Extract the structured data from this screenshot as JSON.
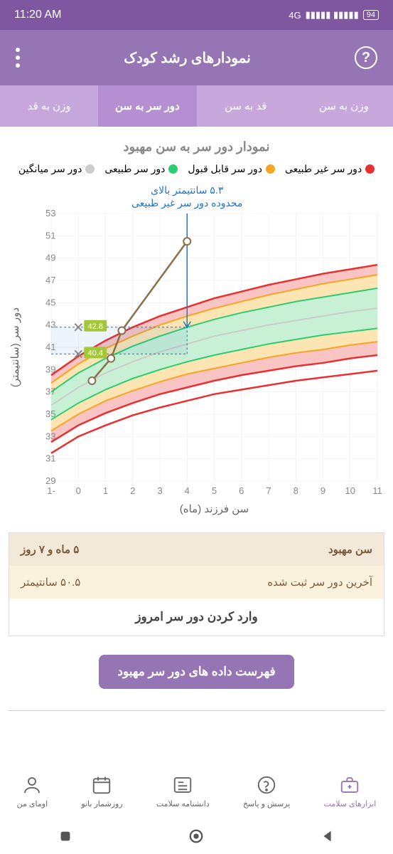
{
  "status": {
    "time": "11:20 AM",
    "network": "4G",
    "battery": "94"
  },
  "appbar": {
    "title": "نمودارهای رشد کودک"
  },
  "tabs": {
    "items": [
      {
        "label": "وزن به سن",
        "active": false
      },
      {
        "label": "قد به سن",
        "active": false
      },
      {
        "label": "دور سر به سن",
        "active": true
      },
      {
        "label": "وزن به قد",
        "active": false
      }
    ]
  },
  "chart": {
    "title": "نمودار دور سر به سن مهبود",
    "legend": [
      {
        "label": "دور سر غیر طبیعی",
        "color": "#e83030"
      },
      {
        "label": "دور سر قابل قبول",
        "color": "#f5a623"
      },
      {
        "label": "دور سر طبیعی",
        "color": "#2ecc71"
      },
      {
        "label": "دور سر میانگین",
        "color": "#cccccc"
      }
    ],
    "annotation": {
      "line1": "۵.۳ سانتیمتر بالای",
      "line2": "محدوده دور سر غیر طبیعی",
      "color": "#1976d2"
    },
    "x_label": "سن فرزند (ماه)",
    "y_label": "دور سر (سانتیمتر)",
    "x_ticks": [
      -1,
      0,
      1,
      2,
      3,
      4,
      5,
      6,
      7,
      8,
      9,
      10,
      11
    ],
    "y_ticks": [
      29,
      31,
      33,
      35,
      37,
      39,
      41,
      43,
      45,
      47,
      49,
      51,
      53
    ],
    "xlim": [
      -1,
      11
    ],
    "ylim": [
      29,
      53
    ],
    "markers": [
      {
        "label": "42.8",
        "value": 42.8,
        "x": 0,
        "color": "#a4c639"
      },
      {
        "label": "40.4",
        "value": 40.4,
        "x": 0,
        "color": "#a4c639"
      }
    ],
    "data_points": [
      {
        "x": 0.5,
        "y": 38.0
      },
      {
        "x": 1.2,
        "y": 40.0
      },
      {
        "x": 1.6,
        "y": 42.5
      },
      {
        "x": 4.0,
        "y": 50.5
      }
    ],
    "bands": {
      "red_upper": [
        38.5,
        40.2,
        41.6,
        42.8,
        43.8,
        44.6,
        45.4,
        46.0,
        46.6,
        47.1,
        47.6,
        48.0,
        48.4
      ],
      "orange_upper": [
        37.8,
        39.5,
        40.9,
        42.0,
        43.0,
        43.8,
        44.5,
        45.1,
        45.7,
        46.2,
        46.7,
        47.1,
        47.5
      ],
      "green_upper": [
        37.0,
        38.7,
        40.0,
        41.1,
        42.0,
        42.8,
        43.5,
        44.1,
        44.6,
        45.1,
        45.5,
        45.9,
        46.3
      ],
      "grey_mid": [
        35.8,
        37.4,
        38.7,
        39.7,
        40.6,
        41.3,
        42.0,
        42.5,
        43.0,
        43.4,
        43.8,
        44.2,
        44.5
      ],
      "green_lower": [
        34.5,
        36.0,
        37.2,
        38.2,
        39.0,
        39.7,
        40.3,
        40.8,
        41.3,
        41.7,
        42.1,
        42.4,
        42.7
      ],
      "orange_lower": [
        33.5,
        35.0,
        36.2,
        37.1,
        37.9,
        38.6,
        39.1,
        39.6,
        40.1,
        40.5,
        40.8,
        41.2,
        41.5
      ],
      "red_lower": [
        32.5,
        34.0,
        35.1,
        36.0,
        36.8,
        37.4,
        38.0,
        38.5,
        38.9,
        39.3,
        39.6,
        40.0,
        40.3
      ],
      "red_bottom": [
        31.5,
        33.0,
        34.0,
        34.9,
        35.6,
        36.2,
        36.8,
        37.2,
        37.6,
        38.0,
        38.3,
        38.6,
        38.9
      ]
    },
    "colors": {
      "red_fill": "#f9c4c4",
      "orange_fill": "#fce4b3",
      "green_fill": "#c8f0d4",
      "red_line": "#e83030",
      "orange_line": "#f5a623",
      "green_line": "#2ecc71",
      "grey_line": "#cccccc",
      "grid": "#e8e8e8",
      "axis_text": "#888",
      "data_line": "#8b6f47"
    }
  },
  "info": {
    "age_label": "سن مهبود",
    "age_value": "۵ ماه و ۷ روز",
    "last_label": "آخرین دور سر ثبت شده",
    "last_value": "۵۰.۵ سانتیمتر",
    "enter_label": "وارد کردن دور سر امروز"
  },
  "list_button": "فهرست داده های دور سر مهبود",
  "bottomnav": {
    "items": [
      {
        "label": "اومای من",
        "icon": "person"
      },
      {
        "label": "روزشمار بانو",
        "icon": "calendar"
      },
      {
        "label": "دانشنامه سلامت",
        "icon": "news"
      },
      {
        "label": "پرسش و پاسخ",
        "icon": "question"
      },
      {
        "label": "ابزارهای سلامت",
        "icon": "toolkit",
        "active": true
      }
    ]
  }
}
